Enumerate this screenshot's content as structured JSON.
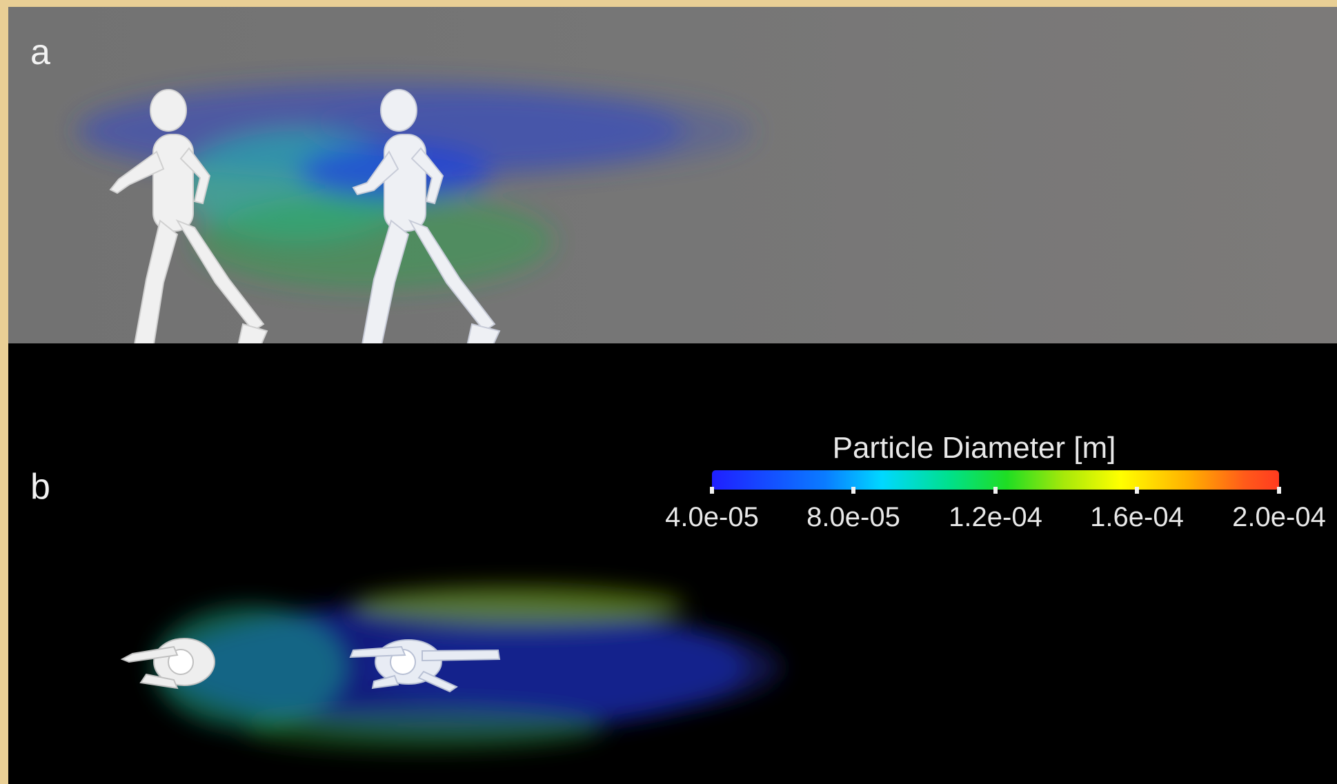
{
  "panels": {
    "a_label": "a",
    "b_label": "b"
  },
  "legend": {
    "title": "Particle Diameter [m]",
    "ticks": [
      "4.0e-05",
      "8.0e-05",
      "1.2e-04",
      "1.6e-04",
      "2.0e-04"
    ],
    "colormap": [
      "#1f1fff",
      "#0a7cff",
      "#00d8ff",
      "#00e08a",
      "#1fdd23",
      "#a6e80a",
      "#ffff00",
      "#ffb000",
      "#ff5a1a",
      "#ff3b1f"
    ]
  },
  "colors": {
    "background_top": "#767676",
    "background_bottom": "#000000",
    "figure_color": "#f0f0f0",
    "page_border": "#e9cf95"
  }
}
